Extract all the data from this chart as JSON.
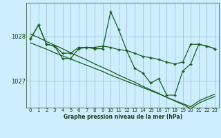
{
  "title": "Graphe pression niveau de la mer (hPa)",
  "bg_color": "#cceeff",
  "grid_color": "#99bbcc",
  "line_color": "#1a5c1a",
  "x_labels": [
    "0",
    "1",
    "2",
    "3",
    "4",
    "5",
    "6",
    "7",
    "8",
    "9",
    "10",
    "11",
    "12",
    "13",
    "14",
    "15",
    "16",
    "17",
    "18",
    "19",
    "20",
    "21",
    "22",
    "23"
  ],
  "yticks": [
    1027,
    1028
  ],
  "ylim": [
    1026.4,
    1028.75
  ],
  "line_smooth1": [
    1028.05,
    1027.97,
    1027.88,
    1027.8,
    1027.72,
    1027.63,
    1027.55,
    1027.47,
    1027.38,
    1027.3,
    1027.22,
    1027.13,
    1027.05,
    1026.97,
    1026.88,
    1026.8,
    1026.72,
    1026.63,
    1026.55,
    1026.47,
    1026.38,
    1026.5,
    1026.58,
    1026.65
  ],
  "line_smooth2": [
    1027.85,
    1027.78,
    1027.71,
    1027.63,
    1027.56,
    1027.49,
    1027.42,
    1027.35,
    1027.28,
    1027.21,
    1027.13,
    1027.06,
    1026.99,
    1026.92,
    1026.85,
    1026.78,
    1026.71,
    1026.63,
    1026.56,
    1026.49,
    1026.42,
    1026.55,
    1026.63,
    1026.7
  ],
  "line_jagged1": [
    1027.95,
    1028.25,
    1027.82,
    1027.78,
    1027.62,
    1027.62,
    1027.75,
    1027.75,
    1027.75,
    1027.78,
    1027.75,
    1027.7,
    1027.68,
    1027.62,
    1027.55,
    1027.52,
    1027.48,
    1027.42,
    1027.38,
    1027.42,
    1027.82,
    1027.82,
    1027.78,
    1027.72
  ],
  "line_jagged2": [
    1027.95,
    1028.25,
    1027.82,
    1027.78,
    1027.5,
    1027.5,
    1027.72,
    1027.75,
    1027.72,
    1027.72,
    1028.55,
    1028.15,
    1027.68,
    1027.28,
    1027.18,
    1026.95,
    1027.05,
    1026.68,
    1026.68,
    1027.22,
    1027.38,
    1027.82,
    1027.78,
    1027.72
  ]
}
